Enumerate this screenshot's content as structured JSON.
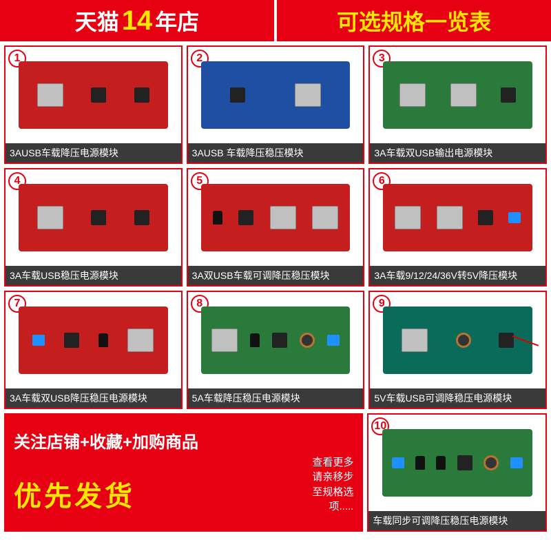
{
  "header": {
    "left_prefix": "天猫",
    "left_number": "14",
    "left_suffix": "年店",
    "right": "可选规格一览表"
  },
  "items": [
    {
      "num": "1",
      "caption": "3AUSB车载降压电源模块",
      "pcb": "red",
      "parts": [
        "usb",
        "chip",
        "chip"
      ]
    },
    {
      "num": "2",
      "caption": "3AUSB    车载降压稳压模块",
      "pcb": "blue",
      "parts": [
        "chip",
        "usb"
      ]
    },
    {
      "num": "3",
      "caption": "3A车载双USB输出电源模块",
      "pcb": "green",
      "parts": [
        "usb",
        "usb",
        "chip"
      ]
    },
    {
      "num": "4",
      "caption": "3A车载USB稳压电源模块",
      "pcb": "red",
      "parts": [
        "usb",
        "chip",
        "chip"
      ]
    },
    {
      "num": "5",
      "caption": "3A双USB车载可调降压稳压模块",
      "pcb": "red",
      "parts": [
        "cap",
        "chip",
        "usb",
        "usb"
      ]
    },
    {
      "num": "6",
      "caption": "3A车载9/12/24/36V转5V降压模块",
      "pcb": "red",
      "parts": [
        "usb",
        "usb",
        "chip",
        "term"
      ]
    },
    {
      "num": "7",
      "caption": "3A车载双USB降压稳压电源模块",
      "pcb": "red",
      "parts": [
        "term",
        "chip",
        "cap",
        "usb"
      ]
    },
    {
      "num": "8",
      "caption": "5A车载降压稳压电源模块",
      "pcb": "green",
      "parts": [
        "usb",
        "cap",
        "chip",
        "coil",
        "term"
      ]
    },
    {
      "num": "9",
      "caption": "5V车载USB可调降稳压电源模块",
      "pcb": "teal",
      "parts": [
        "usb",
        "coil",
        "chip"
      ],
      "wire": true
    },
    {
      "num": "10",
      "caption": "车载同步可调降压稳压电源模块",
      "pcb": "green",
      "parts": [
        "term",
        "cap",
        "cap",
        "chip",
        "coil",
        "term"
      ]
    }
  ],
  "promo": {
    "line1": "关注店铺+收藏+加购商品",
    "sub1": "查看更多",
    "sub2": "请亲移步",
    "sub3": "至规格选",
    "sub4": "项.....",
    "big": "优先发货"
  },
  "colors": {
    "brand_red": "#e60012",
    "brand_yellow": "#ffe600",
    "caption_bg": "#3a3a3a"
  }
}
